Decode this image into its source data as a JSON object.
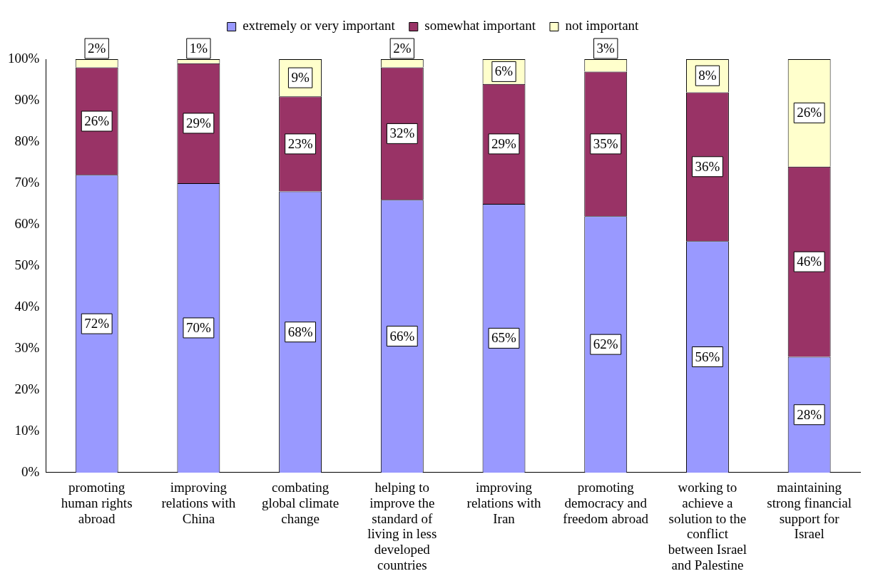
{
  "chart_data": {
    "type": "bar",
    "stacked": true,
    "legend": "top",
    "grid": false,
    "categories": [
      "promoting human rights abroad",
      "improving relations with China",
      "combating global climate change",
      "helping to improve the standard of living in less developed countries",
      "improving relations with Iran",
      "promoting democracy and freedom abroad",
      "working to achieve a solution to the conflict between Israel and Palestine",
      "maintaining strong financial support for Israel"
    ],
    "series": [
      {
        "name": "extremely or very important",
        "color": "#9999ff",
        "values": [
          72,
          70,
          68,
          66,
          65,
          62,
          56,
          28
        ],
        "value_labels": [
          "72%",
          "70%",
          "68%",
          "66%",
          "65%",
          "62%",
          "56%",
          "28%"
        ]
      },
      {
        "name": "somewhat important",
        "color": "#993366",
        "values": [
          26,
          29,
          23,
          32,
          29,
          35,
          36,
          46
        ],
        "value_labels": [
          "26%",
          "29%",
          "23%",
          "32%",
          "29%",
          "35%",
          "36%",
          "46%"
        ]
      },
      {
        "name": "not important",
        "color": "#ffffcc",
        "values": [
          2,
          1,
          9,
          2,
          6,
          3,
          8,
          26
        ],
        "value_labels": [
          "2%",
          "1%",
          "9%",
          "2%",
          "6%",
          "3%",
          "8%",
          "26%"
        ]
      }
    ],
    "ylim": [
      0,
      100
    ],
    "yticks": [
      {
        "value": 0,
        "label": "0%"
      },
      {
        "value": 10,
        "label": "10%"
      },
      {
        "value": 20,
        "label": "20%"
      },
      {
        "value": 30,
        "label": "30%"
      },
      {
        "value": 40,
        "label": "40%"
      },
      {
        "value": 50,
        "label": "50%"
      },
      {
        "value": 60,
        "label": "60%"
      },
      {
        "value": 70,
        "label": "70%"
      },
      {
        "value": 80,
        "label": "80%"
      },
      {
        "value": 90,
        "label": "90%"
      },
      {
        "value": 100,
        "label": "100%"
      }
    ]
  }
}
